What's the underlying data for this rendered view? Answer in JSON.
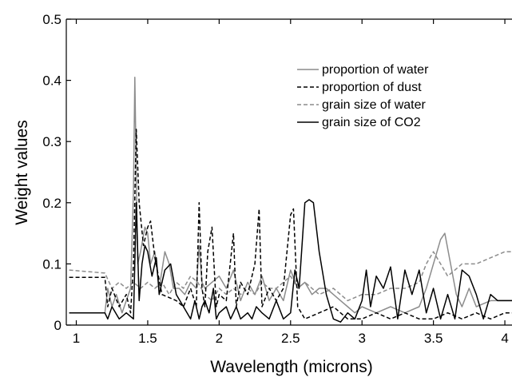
{
  "chart_data": {
    "type": "line",
    "title": "",
    "xlabel": "Wavelength (microns)",
    "ylabel": "Weight values",
    "xlim": [
      0.93,
      4.05
    ],
    "ylim": [
      0,
      0.5
    ],
    "xticks": [
      1,
      1.5,
      2,
      2.5,
      3,
      3.5,
      4
    ],
    "xtick_labels": [
      "1",
      "1.5",
      "2",
      "2.5",
      "3",
      "3.5",
      "4"
    ],
    "yticks": [
      0,
      0.1,
      0.2,
      0.3,
      0.4,
      0.5
    ],
    "ytick_labels": [
      "0",
      "0.1",
      "0.2",
      "0.3",
      "0.4",
      "0.5"
    ],
    "grid": false,
    "legend_position": "upper-right",
    "series": [
      {
        "name": "proportion of water",
        "color": "#8c8c8c",
        "dash": "solid",
        "x": [
          0.95,
          1.2,
          1.22,
          1.25,
          1.28,
          1.32,
          1.38,
          1.4,
          1.41,
          1.42,
          1.43,
          1.45,
          1.48,
          1.5,
          1.52,
          1.55,
          1.58,
          1.62,
          1.65,
          1.68,
          1.72,
          1.76,
          1.8,
          1.84,
          1.86,
          1.88,
          1.9,
          1.95,
          2.0,
          2.05,
          2.1,
          2.15,
          2.2,
          2.25,
          2.3,
          2.35,
          2.4,
          2.45,
          2.5,
          2.55,
          2.6,
          2.65,
          2.7,
          2.75,
          2.8,
          2.85,
          2.9,
          2.95,
          3.0,
          3.1,
          3.2,
          3.3,
          3.4,
          3.45,
          3.5,
          3.55,
          3.58,
          3.62,
          3.66,
          3.7,
          3.75,
          3.8,
          3.9,
          4.0,
          4.05
        ],
        "y": [
          0.02,
          0.02,
          0.06,
          0.03,
          0.05,
          0.02,
          0.06,
          0.22,
          0.405,
          0.25,
          0.1,
          0.12,
          0.16,
          0.15,
          0.1,
          0.12,
          0.06,
          0.12,
          0.1,
          0.06,
          0.06,
          0.05,
          0.07,
          0.06,
          0.13,
          0.07,
          0.06,
          0.07,
          0.08,
          0.06,
          0.09,
          0.04,
          0.07,
          0.05,
          0.08,
          0.04,
          0.06,
          0.04,
          0.09,
          0.06,
          0.07,
          0.05,
          0.06,
          0.06,
          0.05,
          0.04,
          0.03,
          0.02,
          0.03,
          0.02,
          0.03,
          0.02,
          0.03,
          0.06,
          0.1,
          0.14,
          0.15,
          0.1,
          0.05,
          0.03,
          0.06,
          0.03,
          0.04,
          0.04,
          0.04
        ]
      },
      {
        "name": "proportion of dust",
        "color": "#000000",
        "dash": "dashed",
        "x": [
          0.95,
          1.2,
          1.22,
          1.25,
          1.3,
          1.35,
          1.38,
          1.4,
          1.42,
          1.44,
          1.47,
          1.5,
          1.52,
          1.55,
          1.6,
          1.7,
          1.75,
          1.8,
          1.84,
          1.86,
          1.88,
          1.9,
          1.92,
          1.95,
          1.98,
          2.0,
          2.05,
          2.1,
          2.12,
          2.15,
          2.2,
          2.25,
          2.28,
          2.3,
          2.35,
          2.4,
          2.45,
          2.5,
          2.52,
          2.55,
          2.6,
          2.7,
          2.8,
          2.9,
          3.0,
          3.1,
          3.2,
          3.3,
          3.4,
          3.5,
          3.6,
          3.7,
          3.8,
          3.9,
          4.0,
          4.05
        ],
        "y": [
          0.078,
          0.078,
          0.03,
          0.06,
          0.03,
          0.05,
          0.02,
          0.1,
          0.32,
          0.2,
          0.13,
          0.16,
          0.17,
          0.11,
          0.05,
          0.04,
          0.03,
          0.06,
          0.03,
          0.2,
          0.06,
          0.03,
          0.12,
          0.16,
          0.03,
          0.05,
          0.04,
          0.15,
          0.03,
          0.07,
          0.05,
          0.1,
          0.19,
          0.03,
          0.06,
          0.04,
          0.06,
          0.18,
          0.19,
          0.03,
          0.01,
          0.02,
          0.03,
          0.01,
          0.01,
          0.02,
          0.01,
          0.02,
          0.01,
          0.01,
          0.02,
          0.01,
          0.02,
          0.01,
          0.02,
          0.02
        ]
      },
      {
        "name": "grain size of water",
        "color": "#8c8c8c",
        "dash": "dashed",
        "x": [
          0.95,
          1.2,
          1.25,
          1.3,
          1.35,
          1.4,
          1.45,
          1.5,
          1.55,
          1.6,
          1.65,
          1.7,
          1.75,
          1.8,
          1.85,
          1.9,
          1.95,
          2.0,
          2.05,
          2.1,
          2.15,
          2.2,
          2.25,
          2.3,
          2.35,
          2.4,
          2.45,
          2.5,
          2.55,
          2.6,
          2.7,
          2.8,
          2.9,
          3.0,
          3.1,
          3.2,
          3.3,
          3.4,
          3.45,
          3.5,
          3.55,
          3.6,
          3.65,
          3.7,
          3.8,
          3.9,
          4.0,
          4.05
        ],
        "y": [
          0.09,
          0.085,
          0.06,
          0.07,
          0.06,
          0.07,
          0.06,
          0.07,
          0.06,
          0.07,
          0.05,
          0.07,
          0.06,
          0.08,
          0.07,
          0.05,
          0.04,
          0.06,
          0.05,
          0.06,
          0.05,
          0.06,
          0.05,
          0.07,
          0.06,
          0.06,
          0.07,
          0.08,
          0.06,
          0.07,
          0.05,
          0.06,
          0.04,
          0.05,
          0.05,
          0.06,
          0.06,
          0.07,
          0.1,
          0.12,
          0.1,
          0.08,
          0.09,
          0.1,
          0.1,
          0.11,
          0.12,
          0.12
        ]
      },
      {
        "name": "grain size of CO2",
        "color": "#000000",
        "dash": "solid",
        "x": [
          0.95,
          1.2,
          1.22,
          1.25,
          1.3,
          1.35,
          1.4,
          1.42,
          1.44,
          1.46,
          1.48,
          1.5,
          1.53,
          1.56,
          1.58,
          1.62,
          1.66,
          1.7,
          1.75,
          1.8,
          1.83,
          1.86,
          1.88,
          1.9,
          1.93,
          1.96,
          1.98,
          2.0,
          2.05,
          2.08,
          2.1,
          2.12,
          2.15,
          2.2,
          2.23,
          2.26,
          2.3,
          2.35,
          2.4,
          2.45,
          2.5,
          2.53,
          2.56,
          2.6,
          2.63,
          2.66,
          2.7,
          2.75,
          2.8,
          2.85,
          2.9,
          2.95,
          3.0,
          3.03,
          3.06,
          3.1,
          3.15,
          3.2,
          3.25,
          3.3,
          3.35,
          3.4,
          3.45,
          3.5,
          3.55,
          3.6,
          3.65,
          3.7,
          3.75,
          3.8,
          3.85,
          3.9,
          3.95,
          4.0,
          4.05
        ],
        "y": [
          0.02,
          0.02,
          0.01,
          0.03,
          0.01,
          0.02,
          0.01,
          0.2,
          0.04,
          0.1,
          0.13,
          0.12,
          0.08,
          0.11,
          0.05,
          0.09,
          0.1,
          0.05,
          0.03,
          0.01,
          0.04,
          0.01,
          0.03,
          0.04,
          0.02,
          0.06,
          0.01,
          0.02,
          0.03,
          0.01,
          0.02,
          0.03,
          0.01,
          0.02,
          0.01,
          0.03,
          0.02,
          0.01,
          0.04,
          0.01,
          0.02,
          0.09,
          0.06,
          0.2,
          0.205,
          0.2,
          0.12,
          0.05,
          0.01,
          0.005,
          0.02,
          0.01,
          0.04,
          0.09,
          0.03,
          0.08,
          0.06,
          0.095,
          0.01,
          0.09,
          0.05,
          0.09,
          0.02,
          0.06,
          0.01,
          0.05,
          0.01,
          0.09,
          0.08,
          0.05,
          0.01,
          0.05,
          0.04,
          0.04,
          0.04
        ]
      }
    ]
  }
}
